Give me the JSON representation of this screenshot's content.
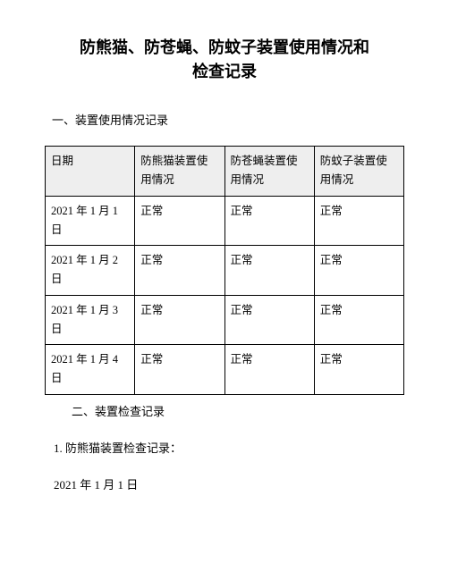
{
  "title_line1": "防熊猫、防苍蝇、防蚊子装置使用情况和",
  "title_line2": "检查记录",
  "section1_heading": "一、装置使用情况记录",
  "table": {
    "columns": [
      "日期",
      "防熊猫装置使用情况",
      "防苍蝇装置使用情况",
      "防蚊子装置使用情况"
    ],
    "rows": [
      [
        "2021 年 1 月 1 日",
        "正常",
        "正常",
        "正常"
      ],
      [
        "2021 年 1 月 2 日",
        "正常",
        "正常",
        "正常"
      ],
      [
        "2021 年 1 月 3 日",
        "正常",
        "正常",
        "正常"
      ],
      [
        "2021 年 1 月 4 日",
        "正常",
        "正常",
        "正常"
      ]
    ]
  },
  "section2_heading": "二、装置检查记录",
  "subitem1": "1. 防熊猫装置检查记录：",
  "date_line": "2021 年 1 月 1 日",
  "colors": {
    "text": "#000000",
    "background": "#ffffff",
    "header_bg": "#eeeeee",
    "border": "#000000"
  },
  "fontsizes": {
    "title": 18,
    "body": 13,
    "table": 12.5
  }
}
